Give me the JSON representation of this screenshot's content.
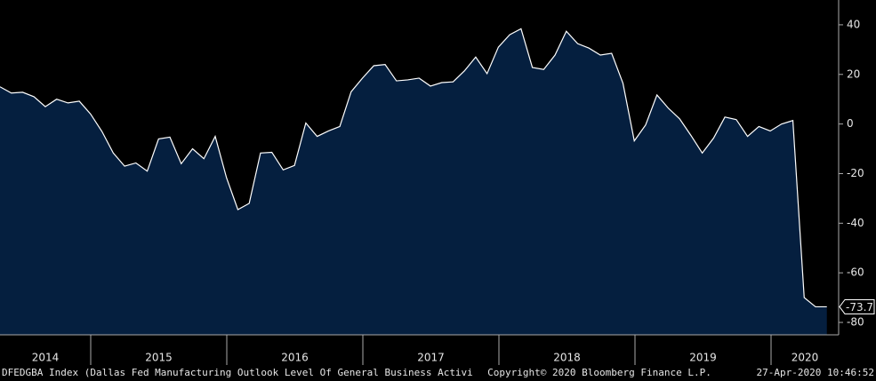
{
  "chart_data": {
    "type": "area",
    "x_labels": [
      "2014",
      "2015",
      "2016",
      "2017",
      "2018",
      "2019",
      "2020"
    ],
    "values": [
      15,
      12.5,
      12.8,
      11,
      7,
      10,
      8.5,
      9.2,
      4,
      -3,
      -11.7,
      -17,
      -15.7,
      -19,
      -6,
      -5.3,
      -16,
      -10,
      -14,
      -5,
      -21.7,
      -34.5,
      -32,
      -11.7,
      -11.4,
      -18.5,
      -16.7,
      0.4,
      -5,
      -2.8,
      -1,
      13,
      18.5,
      23.5,
      24,
      17.4,
      17.8,
      18.5,
      15.3,
      16.7,
      17,
      21.4,
      27,
      20.3,
      31,
      36,
      38.4,
      22.8,
      22,
      27.8,
      37.4,
      32.4,
      30.6,
      27.8,
      28.5,
      16.4,
      -6.8,
      -0.4,
      11.7,
      6.4,
      2.1,
      -4.6,
      -11.7,
      -5.7,
      2.8,
      1.8,
      -5,
      -1,
      -2.8,
      0,
      1.4,
      -70,
      -73.7,
      -73.7
    ],
    "color": "#051f3f",
    "line_color": "#ffffff",
    "ylim": [
      -85,
      50
    ],
    "yticks": [
      40,
      20,
      0,
      -20,
      -40,
      -60,
      -80
    ],
    "footer_left": "DFEDGBA Index (Dallas Fed Manufacturing Outlook Level Of General Business Activi",
    "footer_center": "Copyright© 2020 Bloomberg Finance L.P.",
    "footer_right": "27-Apr-2020 10:46:52"
  }
}
